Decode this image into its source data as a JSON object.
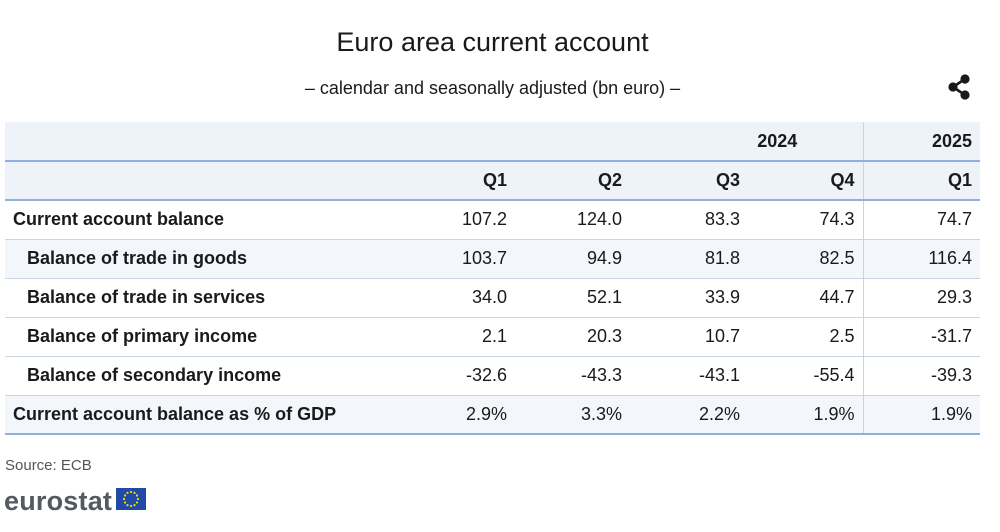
{
  "header": {
    "title": "Euro area current account",
    "subtitle": "– calendar and seasonally adjusted (bn euro) –"
  },
  "toolbar": {
    "share_icon": "share-icon"
  },
  "chart_data": {
    "type": "table",
    "years": [
      {
        "label": "2024",
        "span": 4
      },
      {
        "label": "2025",
        "span": 1
      }
    ],
    "columns": [
      "Q1",
      "Q2",
      "Q3",
      "Q4",
      "Q1"
    ],
    "rows": [
      {
        "label": "Current account balance",
        "indent": false,
        "values": [
          "107.2",
          "124.0",
          "83.3",
          "74.3",
          "74.7"
        ]
      },
      {
        "label": "Balance of trade in goods",
        "indent": true,
        "values": [
          "103.7",
          "94.9",
          "81.8",
          "82.5",
          "116.4"
        ]
      },
      {
        "label": "Balance of trade in services",
        "indent": true,
        "values": [
          "34.0",
          "52.1",
          "33.9",
          "44.7",
          "29.3"
        ]
      },
      {
        "label": "Balance of primary income",
        "indent": true,
        "values": [
          "2.1",
          "20.3",
          "10.7",
          "2.5",
          "-31.7"
        ]
      },
      {
        "label": "Balance of secondary income",
        "indent": true,
        "values": [
          "-32.6",
          "-43.3",
          "-43.1",
          "-55.4",
          "-39.3"
        ]
      },
      {
        "label": "Current account balance as % of GDP",
        "indent": false,
        "values": [
          "2.9%",
          "3.3%",
          "2.2%",
          "1.9%",
          "1.9%"
        ]
      }
    ]
  },
  "footer": {
    "source": "Source: ECB",
    "logo_text": "eurostat"
  },
  "colors": {
    "header_bg": "#eef3fa",
    "rule": "#8fb0dc",
    "flag_blue": "#1f4aa8",
    "flag_star": "#ffd500"
  }
}
